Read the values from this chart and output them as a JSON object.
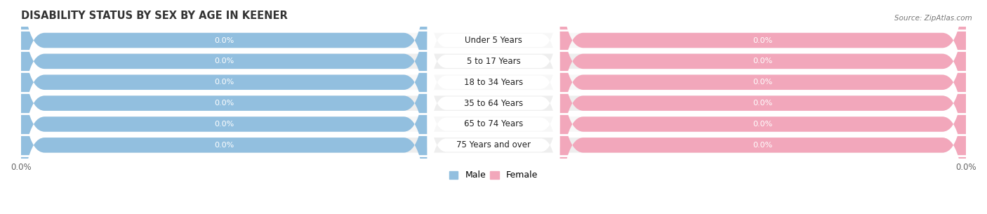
{
  "title": "DISABILITY STATUS BY SEX BY AGE IN KEENER",
  "source": "Source: ZipAtlas.com",
  "categories": [
    "Under 5 Years",
    "5 to 17 Years",
    "18 to 34 Years",
    "35 to 64 Years",
    "65 to 74 Years",
    "75 Years and over"
  ],
  "male_values": [
    0.0,
    0.0,
    0.0,
    0.0,
    0.0,
    0.0
  ],
  "female_values": [
    0.0,
    0.0,
    0.0,
    0.0,
    0.0,
    0.0
  ],
  "male_color": "#92bfdf",
  "female_color": "#f2a7bb",
  "row_bg_light": "#f7f7f7",
  "row_bg_dark": "#eeeeee",
  "label_color": "#555555",
  "title_color": "#333333",
  "figsize": [
    14.06,
    3.05
  ],
  "dpi": 100
}
